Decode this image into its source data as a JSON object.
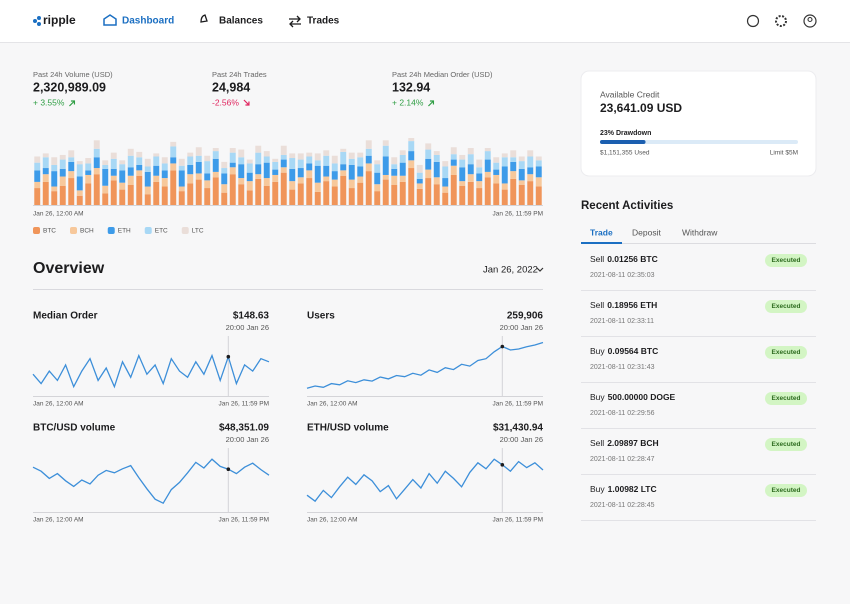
{
  "header": {
    "logo": "ripple",
    "nav": [
      "Dashboard",
      "Balances",
      "Trades"
    ]
  },
  "stats": [
    {
      "label": "Past 24h Volume (USD)",
      "value": "2,320,989.09",
      "change": "+ 3.55%",
      "trend": "up",
      "color": "#2f9e44"
    },
    {
      "label": "Past 24h Trades",
      "value": "24,984",
      "change": "-2.56%",
      "trend": "down",
      "color": "#e0245e"
    },
    {
      "label": "Past 24h Median Order (USD)",
      "value": "132.94",
      "change": "+ 2.14%",
      "trend": "up",
      "color": "#2f9e44"
    }
  ],
  "chart_data": [
    {
      "type": "bar",
      "stacked": true,
      "ylim": [
        0,
        100
      ],
      "categories": [
        "Jan 26, 12:00 AM",
        null,
        null,
        null,
        null,
        null,
        null,
        null,
        null,
        null,
        null,
        null,
        null,
        null,
        null,
        null,
        null,
        null,
        null,
        null,
        null,
        null,
        null,
        null,
        null,
        null,
        null,
        null,
        null,
        null,
        null,
        null,
        null,
        null,
        null,
        null,
        null,
        null,
        null,
        null,
        null,
        null,
        null,
        null,
        null,
        null,
        null,
        null,
        null,
        null,
        null,
        null,
        null,
        null,
        null,
        null,
        null,
        null,
        null,
        "Jan 26, 11:59 PM"
      ],
      "series": [
        {
          "name": "BTC",
          "color": "#f0955a",
          "values": [
            22,
            30,
            18,
            25,
            35,
            12,
            28,
            40,
            15,
            32,
            20,
            26,
            38,
            14,
            30,
            24,
            45,
            18,
            28,
            33,
            22,
            36,
            16,
            40,
            27,
            19,
            34,
            25,
            30,
            42,
            20,
            28,
            35,
            17,
            31,
            24,
            38,
            22,
            29,
            44,
            18,
            33,
            26,
            30,
            48,
            21,
            35,
            27,
            16,
            39,
            25,
            30,
            22,
            36,
            28,
            20,
            34,
            26,
            31,
            24
          ]
        },
        {
          "name": "BCH",
          "color": "#f7c89b",
          "values": [
            8,
            10,
            6,
            12,
            9,
            7,
            11,
            8,
            10,
            6,
            9,
            12,
            7,
            10,
            8,
            11,
            9,
            6,
            12,
            8,
            10,
            7,
            11,
            9,
            8,
            12,
            6,
            10,
            9,
            7,
            11,
            8,
            10,
            12,
            6,
            9,
            7,
            11,
            8,
            10,
            9,
            6,
            12,
            8,
            10,
            7,
            11,
            9,
            8,
            12,
            6,
            10,
            9,
            7,
            11,
            8,
            10,
            6,
            9,
            12
          ]
        },
        {
          "name": "ETH",
          "color": "#3d9be9",
          "values": [
            15,
            8,
            20,
            10,
            12,
            18,
            6,
            14,
            22,
            9,
            16,
            11,
            7,
            19,
            13,
            10,
            8,
            21,
            12,
            15,
            9,
            17,
            14,
            6,
            18,
            11,
            13,
            20,
            7,
            10,
            16,
            12,
            9,
            22,
            14,
            11,
            8,
            19,
            13,
            10,
            15,
            24,
            9,
            17,
            12,
            6,
            14,
            20,
            11,
            8,
            18,
            13,
            10,
            16,
            7,
            22,
            12,
            15,
            9,
            14
          ]
        },
        {
          "name": "ETC",
          "color": "#a8d8f5",
          "values": [
            10,
            14,
            8,
            12,
            6,
            16,
            9,
            11,
            5,
            13,
            8,
            15,
            10,
            7,
            12,
            9,
            14,
            6,
            11,
            8,
            16,
            10,
            7,
            13,
            9,
            12,
            15,
            8,
            10,
            6,
            14,
            11,
            9,
            7,
            13,
            10,
            16,
            8,
            12,
            9,
            11,
            14,
            6,
            10,
            13,
            8,
            12,
            9,
            15,
            7,
            10,
            13,
            8,
            11,
            9,
            12,
            6,
            10,
            14,
            8
          ]
        },
        {
          "name": "LTC",
          "color": "#eaded9",
          "values": [
            8,
            5,
            10,
            6,
            9,
            4,
            7,
            11,
            6,
            8,
            5,
            9,
            7,
            10,
            4,
            8,
            6,
            9,
            5,
            11,
            7,
            4,
            8,
            6,
            10,
            5,
            9,
            7,
            4,
            12,
            6,
            8,
            5,
            9,
            7,
            10,
            4,
            8,
            6,
            11,
            5,
            7,
            9,
            6,
            4,
            10,
            8,
            5,
            7,
            9,
            6,
            8,
            10,
            4,
            7,
            5,
            9,
            6,
            8,
            5
          ]
        }
      ]
    },
    {
      "type": "line",
      "title": "Median Order",
      "color": "#3d8fd9",
      "annotation": "20:00 Jan 26",
      "ylim": [
        136,
        154
      ],
      "categories": [
        "Jan 26, 12:00 AM",
        null,
        null,
        null,
        null,
        null,
        null,
        null,
        null,
        null,
        null,
        null,
        null,
        null,
        null,
        null,
        null,
        null,
        null,
        null,
        null,
        null,
        null,
        null,
        null,
        null,
        null,
        null,
        null,
        "Jan 26, 11:59 PM"
      ],
      "values": [
        143,
        140,
        144,
        141,
        146,
        139,
        144,
        148,
        141,
        145,
        139,
        147,
        142,
        149,
        143,
        146,
        140,
        148,
        144,
        142,
        147,
        143,
        149,
        141,
        148.63,
        140,
        146,
        144,
        148,
        147
      ],
      "value_labels": [
        null,
        null,
        null,
        null,
        null,
        null,
        null,
        null,
        null,
        null,
        null,
        null,
        null,
        null,
        null,
        null,
        null,
        null,
        null,
        null,
        null,
        null,
        null,
        null,
        "$148.63",
        null,
        null,
        null,
        null,
        null
      ]
    },
    {
      "type": "line",
      "title": "Users",
      "color": "#3d8fd9",
      "annotation": "20:00 Jan 26",
      "ylim": [
        244000,
        262000
      ],
      "categories": [
        "Jan 26, 12:00 AM",
        null,
        null,
        null,
        null,
        null,
        null,
        null,
        null,
        null,
        null,
        null,
        null,
        null,
        null,
        null,
        null,
        null,
        null,
        null,
        null,
        null,
        null,
        null,
        null,
        null,
        null,
        null,
        null,
        "Jan 26, 11:59 PM"
      ],
      "values": [
        246500,
        247200,
        246800,
        248000,
        247600,
        248900,
        248300,
        249200,
        248800,
        250100,
        249500,
        250600,
        250200,
        251300,
        250700,
        252400,
        251600,
        253100,
        252500,
        254200,
        253600,
        255400,
        256000,
        258200,
        259906,
        258800,
        259100,
        259800,
        260400,
        261200
      ],
      "value_labels": [
        null,
        null,
        null,
        null,
        null,
        null,
        null,
        null,
        null,
        null,
        null,
        null,
        null,
        null,
        null,
        null,
        null,
        null,
        null,
        null,
        null,
        null,
        null,
        null,
        "259,906",
        null,
        null,
        null,
        null,
        null
      ]
    },
    {
      "type": "line",
      "title": "BTC/USD volume",
      "color": "#3d8fd9",
      "annotation": "20:00 Jan 26",
      "ylim": [
        43000,
        50500
      ],
      "categories": [
        "Jan 26, 12:00 AM",
        null,
        null,
        null,
        null,
        null,
        null,
        null,
        null,
        null,
        null,
        null,
        null,
        null,
        null,
        null,
        null,
        null,
        null,
        null,
        null,
        null,
        null,
        null,
        null,
        null,
        null,
        null,
        null,
        "Jan 26, 11:59 PM"
      ],
      "values": [
        48600,
        48100,
        47200,
        47800,
        46900,
        46200,
        47000,
        46500,
        47600,
        48200,
        47900,
        48400,
        48800,
        47300,
        45900,
        44600,
        44100,
        45800,
        46700,
        47900,
        49200,
        48500,
        49600,
        48700,
        48351.09,
        47800,
        48600,
        49100,
        48300,
        47600
      ],
      "value_labels": [
        null,
        null,
        null,
        null,
        null,
        null,
        null,
        null,
        null,
        null,
        null,
        null,
        null,
        null,
        null,
        null,
        null,
        null,
        null,
        null,
        null,
        null,
        null,
        null,
        "$48,351.09",
        null,
        null,
        null,
        null,
        null
      ]
    },
    {
      "type": "line",
      "title": "ETH/USD volume",
      "color": "#3d8fd9",
      "annotation": "20:00 Jan 26",
      "ylim": [
        27500,
        32500
      ],
      "categories": [
        "Jan 26, 12:00 AM",
        null,
        null,
        null,
        null,
        null,
        null,
        null,
        null,
        null,
        null,
        null,
        null,
        null,
        null,
        null,
        null,
        null,
        null,
        null,
        null,
        null,
        null,
        null,
        null,
        null,
        null,
        null,
        null,
        "Jan 26, 11:59 PM"
      ],
      "values": [
        28900,
        28400,
        29300,
        28700,
        29600,
        30400,
        29800,
        30600,
        30100,
        29200,
        29700,
        28600,
        29400,
        30200,
        29500,
        30700,
        29900,
        30900,
        30300,
        29600,
        30800,
        31600,
        31100,
        31900,
        31430.94,
        30900,
        31700,
        31200,
        31600,
        31000
      ],
      "value_labels": [
        null,
        null,
        null,
        null,
        null,
        null,
        null,
        null,
        null,
        null,
        null,
        null,
        null,
        null,
        null,
        null,
        null,
        null,
        null,
        null,
        null,
        null,
        null,
        null,
        "$31,430.94",
        null,
        null,
        null,
        null,
        null
      ]
    }
  ],
  "overview": {
    "title": "Overview",
    "date": "Jan 26, 2022"
  },
  "credit": {
    "label": "Available Credit",
    "amount": "23,641.09 USD",
    "drawdown": 23,
    "drawdown_label": "23% Drawdown",
    "used": "$1,151,355 Used",
    "limit": "Limit $5M"
  },
  "activities": {
    "title": "Recent Activities",
    "tabs": [
      "Trade",
      "Deposit",
      "Withdraw"
    ],
    "items": [
      {
        "side": "Sell",
        "amount": "0.01256 BTC",
        "time": "2021-08-11 02:35:03",
        "status": "Executed"
      },
      {
        "side": "Sell",
        "amount": "0.18956 ETH",
        "time": "2021-08-11 02:33:11",
        "status": "Executed"
      },
      {
        "side": "Buy",
        "amount": "0.09564 BTC",
        "time": "2021-08-11 02:31:43",
        "status": "Executed"
      },
      {
        "side": "Buy",
        "amount": "500.00000 DOGE",
        "time": "2021-08-11 02:29:56",
        "status": "Executed"
      },
      {
        "side": "Sell",
        "amount": "2.09897 BCH",
        "time": "2021-08-11 02:28:47",
        "status": "Executed"
      },
      {
        "side": "Buy",
        "amount": "1.00982 LTC",
        "time": "2021-08-11 02:28:45",
        "status": "Executed"
      }
    ]
  }
}
